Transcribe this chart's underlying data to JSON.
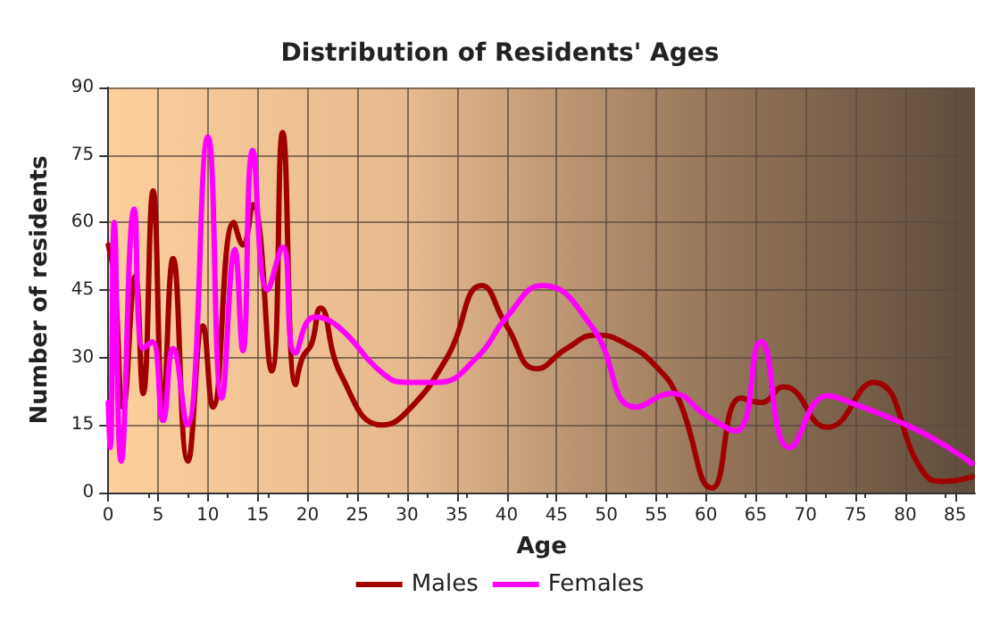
{
  "chart_data": {
    "type": "line",
    "title": "Distribution of Residents' Ages",
    "xlabel": "Age",
    "ylabel": "Number of residents",
    "xlim": [
      0,
      87
    ],
    "xticks": [
      0,
      5,
      10,
      15,
      20,
      25,
      30,
      35,
      40,
      45,
      50,
      55,
      60,
      65,
      70,
      75,
      80,
      85
    ],
    "ylim": [
      0,
      90
    ],
    "yticks": [
      0,
      15,
      30,
      45,
      60,
      75,
      90
    ],
    "grid": true,
    "legend": "bottom",
    "marker": "none",
    "line_style": "solid",
    "series": [
      {
        "name": "Males",
        "color": "#a00000",
        "x": [
          0,
          0.6,
          1.5,
          2.7,
          3.5,
          4.5,
          5.5,
          6.5,
          8,
          9.5,
          10.5,
          12.6,
          13.5,
          14.5,
          16.4,
          17.5,
          18.8,
          19.5,
          20.4,
          21.3,
          23.4,
          27.5,
          30,
          34,
          37.5,
          40,
          43,
          46,
          49,
          52,
          55,
          57.2,
          60.6,
          63.5,
          65.5,
          67.8,
          72.2,
          76.8,
          82,
          83.8,
          86.7
        ],
        "values": [
          55,
          48,
          19,
          48,
          22,
          67,
          19,
          52,
          7,
          37,
          19,
          60,
          55,
          64,
          27,
          80,
          24,
          30,
          33,
          41,
          26,
          15,
          18,
          30,
          46,
          37,
          27.5,
          32,
          35,
          33,
          28,
          21,
          1,
          21,
          20,
          23.5,
          14.5,
          24.5,
          4,
          2.5,
          3.5
        ]
      },
      {
        "name": "Females",
        "color": "#ff00ff",
        "x": [
          0,
          0.2,
          0.6,
          1.3,
          2.6,
          3.5,
          4.4,
          5.5,
          6.5,
          7.9,
          10,
          11.4,
          12.7,
          13.5,
          14.5,
          16,
          17.5,
          18.8,
          20.7,
          23,
          27.6,
          30,
          33,
          37,
          40,
          43.6,
          48.5,
          53,
          56.6,
          60.1,
          63,
          65.5,
          68.4,
          72.2,
          74.5,
          78,
          82,
          86.7
        ],
        "values": [
          20,
          10,
          60,
          7,
          63,
          32,
          33.5,
          16,
          32,
          15,
          79,
          21,
          54,
          31.5,
          76,
          45,
          54.5,
          31,
          39,
          37,
          26.4,
          24.5,
          24.5,
          30,
          39,
          46,
          37,
          19,
          22,
          17,
          13.7,
          33.5,
          10,
          21.5,
          20,
          17,
          13,
          6.5
        ]
      }
    ]
  }
}
